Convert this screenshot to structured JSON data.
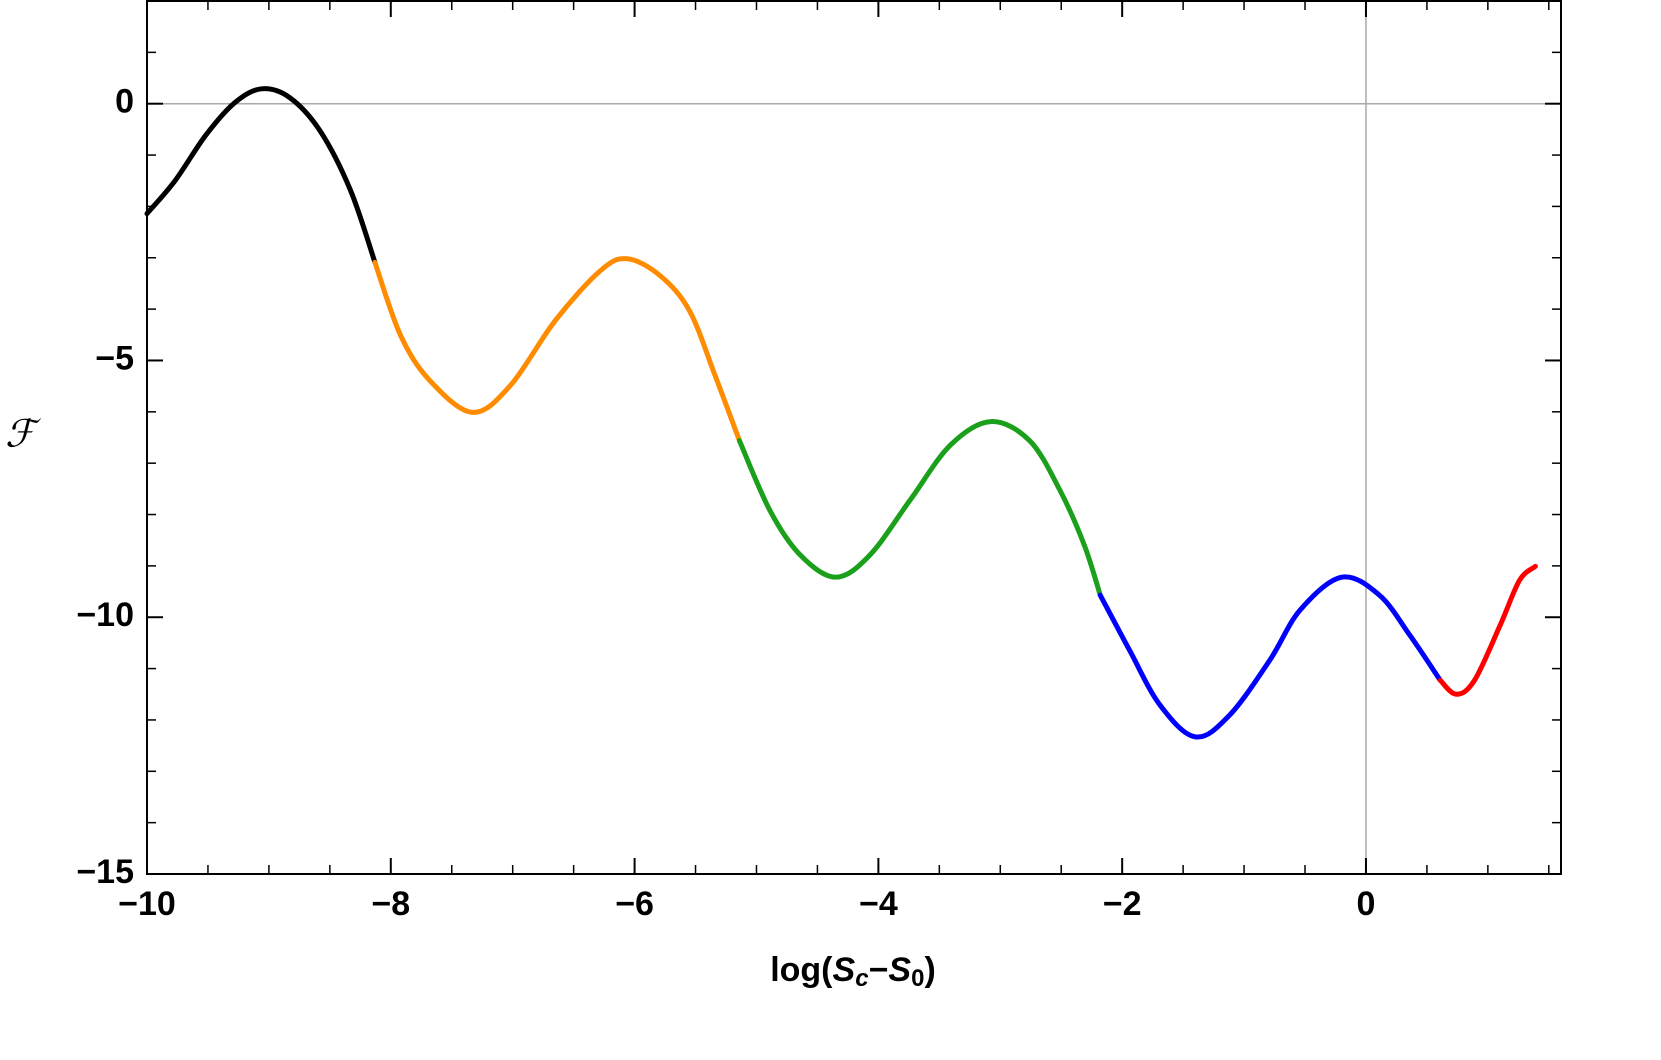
{
  "chart_data": {
    "type": "line",
    "xlabel": [
      "log(",
      "S",
      "c",
      "−",
      "S",
      "0",
      ")"
    ],
    "ylabel": "ℱ",
    "xlim": [
      -10,
      1.6
    ],
    "ylim": [
      -15,
      2
    ],
    "xticks": [
      {
        "value": -10,
        "label": "−10"
      },
      {
        "value": -8,
        "label": "−8"
      },
      {
        "value": -6,
        "label": "−6"
      },
      {
        "value": -4,
        "label": "−4"
      },
      {
        "value": -2,
        "label": "−2"
      },
      0
    ],
    "yticks": [
      0,
      {
        "value": -5,
        "label": "−5"
      },
      {
        "value": -10,
        "label": "−10"
      },
      {
        "value": -15,
        "label": "−15"
      }
    ],
    "xminorticks": [
      -9.5,
      -9,
      -8.5,
      -7.5,
      -7,
      -6.5,
      -5.5,
      -5,
      -4.5,
      -3.5,
      -3,
      -2.5,
      -1.5,
      -1,
      -0.5,
      0.5,
      1,
      1.5
    ],
    "yminorticks": [
      -14,
      -13,
      -12,
      -11,
      -9,
      -8,
      -7,
      -6,
      -4,
      -3,
      -2,
      -1,
      1,
      2
    ],
    "axes": true,
    "series": [
      {
        "color": "#000000",
        "x": [
          -10.0,
          -9.77,
          -9.52,
          -9.28,
          -9.06,
          -8.83,
          -8.58,
          -8.33,
          -8.13
        ],
        "values": [
          -2.14,
          -1.5,
          -0.62,
          0.02,
          0.29,
          0.12,
          -0.53,
          -1.69,
          -3.09
        ]
      },
      {
        "color": "#ff8c00",
        "x": [
          -8.13,
          -7.92,
          -7.68,
          -7.33,
          -7.02,
          -6.65,
          -6.28,
          -6.06,
          -5.79,
          -5.55,
          -5.34,
          -5.14
        ],
        "values": [
          -3.09,
          -4.51,
          -5.39,
          -6.01,
          -5.49,
          -4.22,
          -3.25,
          -3.02,
          -3.35,
          -4.03,
          -5.29,
          -6.56
        ]
      },
      {
        "color": "#1aa01a",
        "x": [
          -5.14,
          -4.89,
          -4.64,
          -4.35,
          -4.07,
          -3.74,
          -3.41,
          -3.08,
          -2.76,
          -2.51,
          -2.31,
          -2.18
        ],
        "values": [
          -6.56,
          -7.92,
          -8.79,
          -9.22,
          -8.79,
          -7.72,
          -6.65,
          -6.19,
          -6.56,
          -7.53,
          -8.6,
          -9.57
        ]
      },
      {
        "color": "#0000ff",
        "x": [
          -2.18,
          -1.94,
          -1.69,
          -1.4,
          -1.12,
          -0.79,
          -0.54,
          -0.2,
          0.11,
          0.36,
          0.61
        ],
        "values": [
          -9.57,
          -10.64,
          -11.71,
          -12.33,
          -11.91,
          -10.84,
          -9.86,
          -9.22,
          -9.57,
          -10.35,
          -11.23
        ]
      },
      {
        "color": "#ff0000",
        "x": [
          0.61,
          0.74,
          0.89,
          1.1,
          1.26,
          1.39
        ],
        "values": [
          -11.23,
          -11.5,
          -11.23,
          -10.16,
          -9.28,
          -9.01
        ]
      }
    ]
  }
}
